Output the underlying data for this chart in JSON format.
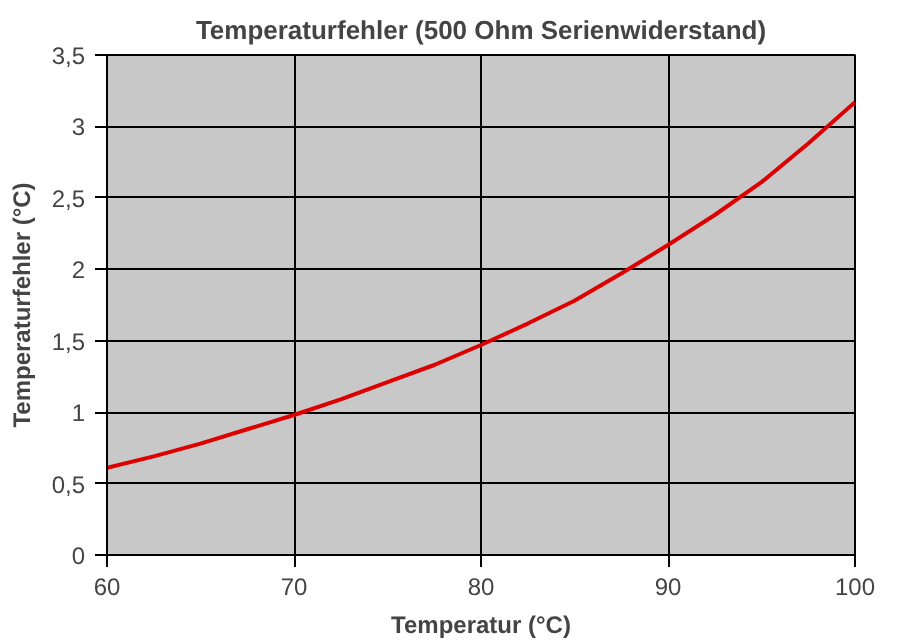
{
  "chart_data": {
    "type": "line",
    "title": "Temperaturfehler (500 Ohm Serienwiderstand)",
    "xlabel": "Temperatur (°C)",
    "ylabel": "Temperaturfehler (°C)",
    "x": [
      60,
      62.5,
      65,
      67.5,
      70,
      72.5,
      75,
      77.5,
      80,
      82.5,
      85,
      87.5,
      90,
      92.5,
      95,
      97.5,
      100
    ],
    "series": [
      {
        "color": "#dd0000",
        "values": [
          0.61,
          0.69,
          0.78,
          0.88,
          0.98,
          1.09,
          1.21,
          1.33,
          1.47,
          1.62,
          1.78,
          1.97,
          2.17,
          2.38,
          2.61,
          2.88,
          3.17
        ]
      }
    ],
    "xlim": [
      60,
      100
    ],
    "xticks": [
      60,
      70,
      80,
      90,
      100
    ],
    "ylim": [
      0,
      3.5
    ],
    "yticks": [
      {
        "value": 0,
        "label": "0"
      },
      {
        "value": 0.5,
        "label": "0,5"
      },
      {
        "value": 1,
        "label": "1"
      },
      {
        "value": 1.5,
        "label": "1,5"
      },
      {
        "value": 2,
        "label": "2"
      },
      {
        "value": 2.5,
        "label": "2,5"
      },
      {
        "value": 3,
        "label": "3"
      },
      {
        "value": 3.5,
        "label": "3,5"
      }
    ],
    "grid": true,
    "marker": "none",
    "line_style": "solid"
  }
}
